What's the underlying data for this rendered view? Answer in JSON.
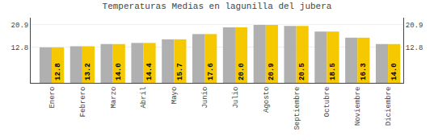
{
  "chart_data": {
    "type": "bar",
    "title": "Temperaturas Medias en lagunilla del jubera",
    "categories": [
      "Enero",
      "Febrero",
      "Marzo",
      "Abril",
      "Mayo",
      "Junio",
      "Julio",
      "Agosto",
      "Septiembre",
      "Octubre",
      "Noviembre",
      "Diciembre"
    ],
    "series": [
      {
        "color": "#B0B0B0",
        "values": [
          12.8,
          13.2,
          14.0,
          14.4,
          15.7,
          17.6,
          20.0,
          20.9,
          20.5,
          18.5,
          16.3,
          14.0
        ]
      },
      {
        "color": "#F5C800",
        "values": [
          12.8,
          13.2,
          14.0,
          14.4,
          15.7,
          17.6,
          20.0,
          20.9,
          20.5,
          18.5,
          16.3,
          14.0
        ],
        "value_labels": [
          "12.8",
          "13.2",
          "14.0",
          "14.4",
          "15.7",
          "17.6",
          "20.0",
          "20.9",
          "20.5",
          "18.5",
          "16.3",
          "14.0"
        ]
      }
    ],
    "ylim": [
      0,
      23.5
    ],
    "yticks": [
      12.8,
      20.9
    ],
    "y2lim": [
      0,
      23.5
    ],
    "y2ticks": [
      12.8,
      20.9
    ],
    "grid": true,
    "data_labels": true
  }
}
